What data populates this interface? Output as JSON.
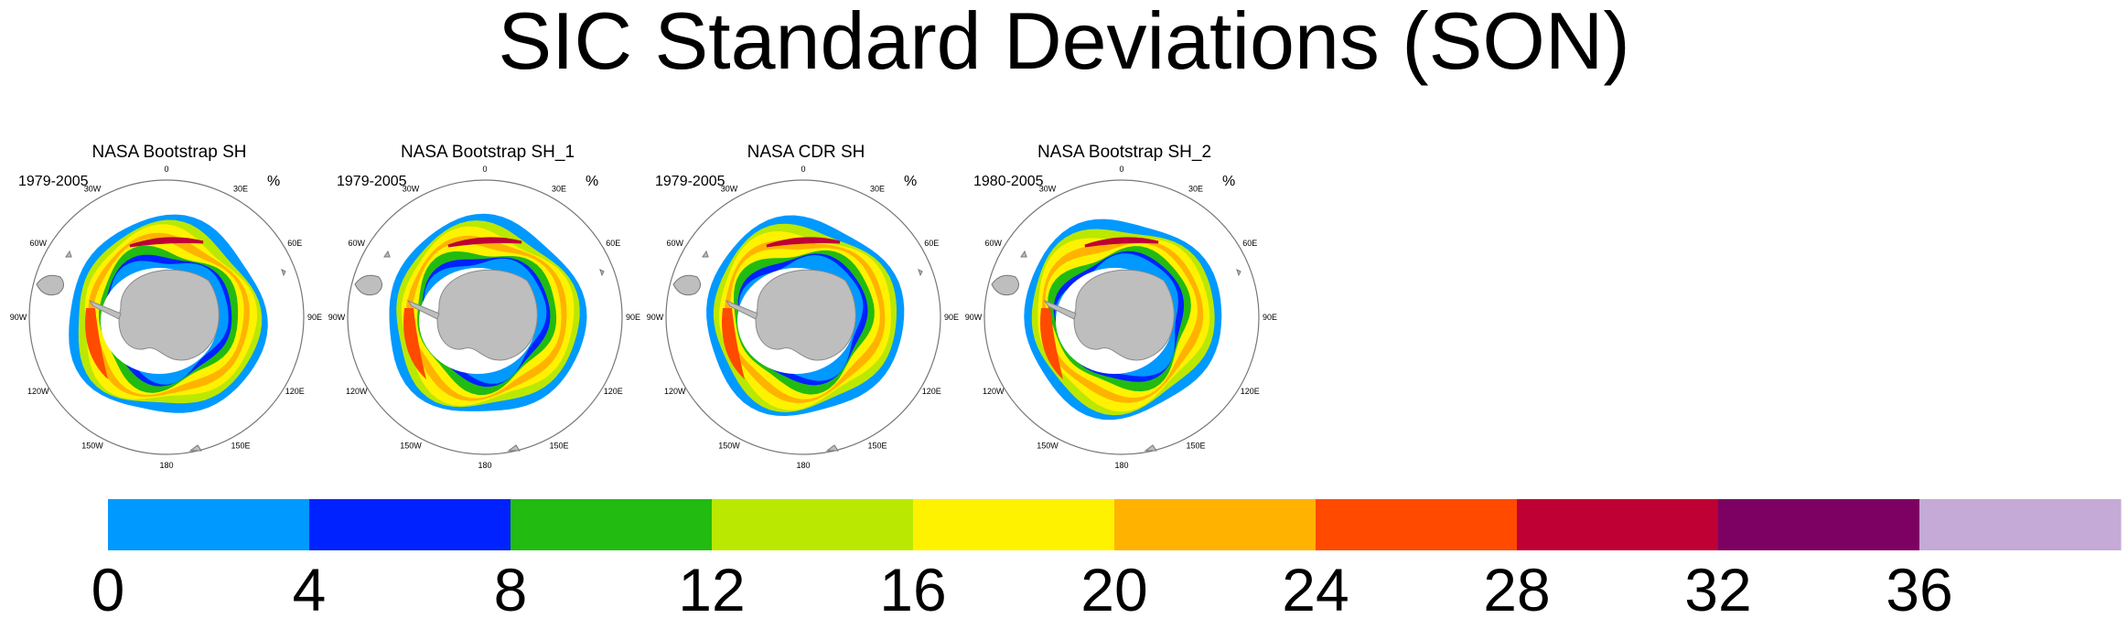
{
  "title": "SIC Standard Deviations (SON)",
  "units": "%",
  "longitude_labels": [
    "0",
    "30E",
    "60E",
    "90E",
    "120E",
    "150E",
    "180",
    "150W",
    "120W",
    "90W",
    "60W",
    "30W"
  ],
  "panels": [
    {
      "title": "NASA Bootstrap SH",
      "years": "1979-2005"
    },
    {
      "title": "NASA Bootstrap SH_1",
      "years": "1979-2005"
    },
    {
      "title": "NASA CDR SH",
      "years": "1979-2005"
    },
    {
      "title": "NASA Bootstrap SH_2",
      "years": "1980-2005"
    }
  ],
  "chart_data": {
    "type": "heatmap",
    "title": "SIC Standard Deviations (SON)",
    "projection": "south polar stereographic",
    "units": "%",
    "colorbar": {
      "levels": [
        0,
        4,
        8,
        12,
        16,
        20,
        24,
        28,
        32,
        36
      ],
      "tick_labels": [
        "0",
        "4",
        "8",
        "12",
        "16",
        "20",
        "24",
        "28",
        "32",
        "36"
      ],
      "colors": [
        "#0099ff",
        "#0022ff",
        "#22bb11",
        "#bbe800",
        "#fff200",
        "#ffb300",
        "#ff4a00",
        "#be0034",
        "#7d0063",
        "#c5a9d6"
      ]
    },
    "panels": [
      "NASA Bootstrap SH",
      "NASA Bootstrap SH_1",
      "NASA CDR SH",
      "NASA Bootstrap SH_2"
    ]
  }
}
